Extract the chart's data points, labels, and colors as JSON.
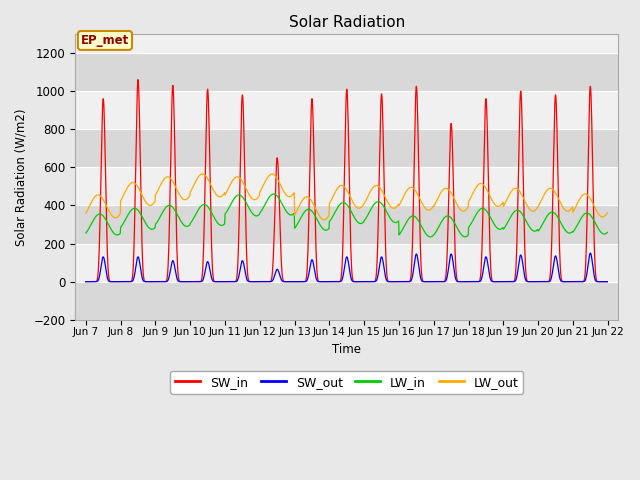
{
  "title": "Solar Radiation",
  "ylabel": "Solar Radiation (W/m2)",
  "xlabel": "Time",
  "ylim": [
    -200,
    1300
  ],
  "yticks": [
    -200,
    0,
    200,
    400,
    600,
    800,
    1000,
    1200
  ],
  "start_day": 7,
  "end_day": 22,
  "num_days": 15,
  "dt_hours": 0.25,
  "colors": {
    "SW_in": "#ff0000",
    "SW_out": "#0000ff",
    "LW_in": "#00cc00",
    "LW_out": "#ffaa00"
  },
  "fig_bg": "#e8e8e8",
  "plot_bg": "#f0f0f0",
  "band_color": "#d8d8d8",
  "grid_color": "#c8c8c8",
  "annotation_text": "EP_met",
  "annotation_bg": "#ffffcc",
  "annotation_border": "#cc8800",
  "SW_in_peaks": [
    960,
    1060,
    1030,
    1010,
    980,
    650,
    960,
    1010,
    985,
    1025,
    830,
    960,
    1000,
    980,
    1025
  ],
  "SW_out_peaks": [
    130,
    130,
    110,
    105,
    110,
    65,
    115,
    130,
    130,
    145,
    145,
    130,
    140,
    135,
    150
  ],
  "LW_in_base": [
    300,
    330,
    345,
    350,
    400,
    405,
    325,
    360,
    365,
    290,
    290,
    330,
    320,
    310,
    305
  ],
  "LW_out_base": [
    395,
    460,
    490,
    505,
    490,
    505,
    385,
    445,
    445,
    435,
    430,
    455,
    430,
    430,
    400
  ],
  "xtick_labels": [
    "Jun 7",
    "Jun 8",
    "Jun 9",
    "Jun 10",
    "Jun 11",
    "Jun 12",
    "Jun 13",
    "Jun 14",
    "Jun 15",
    "Jun 16",
    "Jun 17",
    "Jun 18",
    "Jun 19",
    "Jun 20",
    "Jun 21",
    "Jun 22"
  ]
}
